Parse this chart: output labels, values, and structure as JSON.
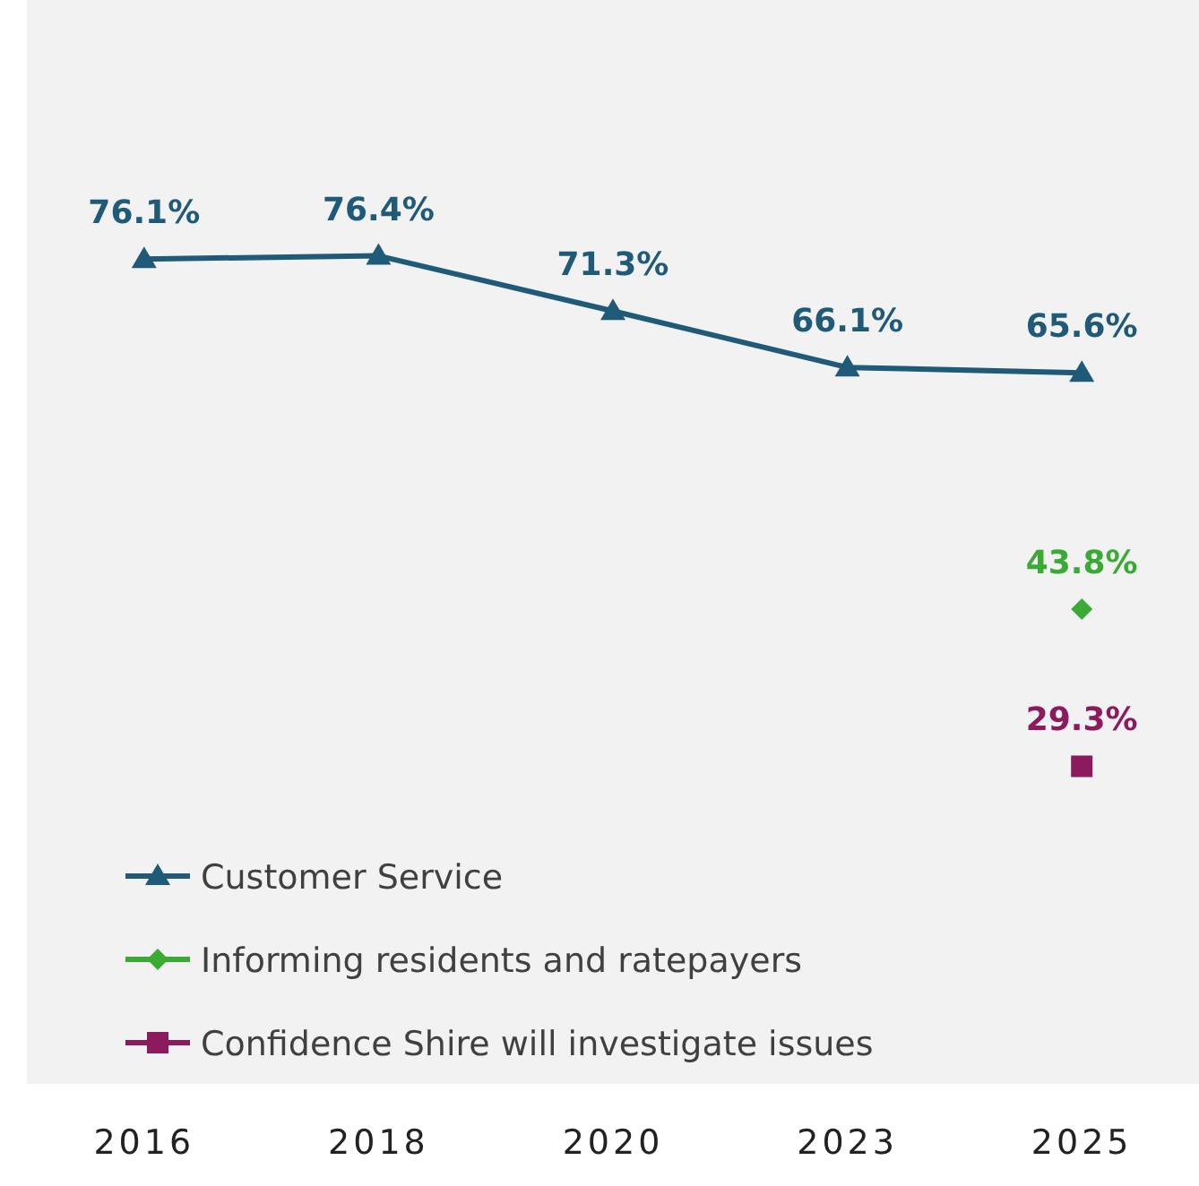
{
  "chart_data": {
    "type": "line",
    "categories": [
      "2016",
      "2018",
      "2020",
      "2023",
      "2025"
    ],
    "ylim": [
      0,
      100
    ],
    "legend": "bottom left",
    "series": [
      {
        "name": "Customer Service",
        "color": "#1f5a78",
        "marker": "triangle",
        "values": [
          76.1,
          76.4,
          71.3,
          66.1,
          65.6
        ],
        "value_labels": [
          "76.1%",
          "76.4%",
          "71.3%",
          "66.1%",
          "65.6%"
        ]
      },
      {
        "name": "Informing residents and ratepayers",
        "color": "#3aaa35",
        "marker": "diamond",
        "values": [
          null,
          null,
          null,
          null,
          43.8
        ],
        "value_labels": [
          null,
          null,
          null,
          null,
          "43.8%"
        ]
      },
      {
        "name": "Confidence Shire will investigate issues",
        "color": "#8b1a5e",
        "marker": "square",
        "values": [
          null,
          null,
          null,
          null,
          29.3
        ],
        "value_labels": [
          null,
          null,
          null,
          null,
          "29.3%"
        ]
      }
    ]
  }
}
